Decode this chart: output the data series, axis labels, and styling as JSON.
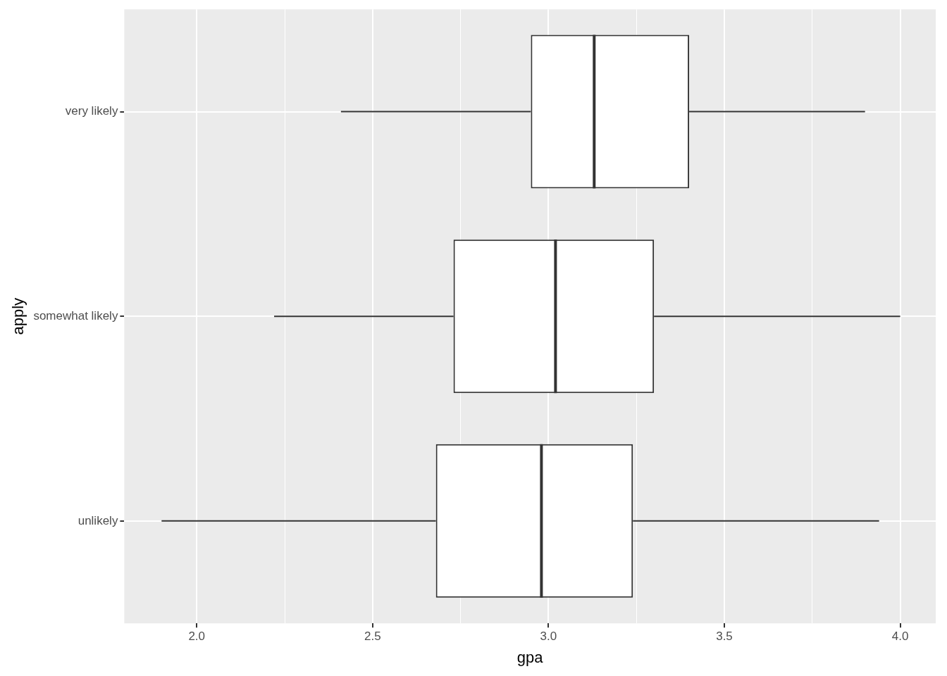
{
  "chart_data": {
    "type": "box",
    "orientation": "horizontal",
    "xlabel": "gpa",
    "ylabel": "apply",
    "categories": [
      "very likely",
      "somewhat likely",
      "unlikely"
    ],
    "boxes": [
      {
        "low": 2.41,
        "q1": 2.95,
        "median": 3.13,
        "q3": 3.4,
        "high": 3.9
      },
      {
        "low": 2.22,
        "q1": 2.73,
        "median": 3.02,
        "q3": 3.3,
        "high": 4.0
      },
      {
        "low": 1.9,
        "q1": 2.68,
        "median": 2.98,
        "q3": 3.24,
        "high": 3.94
      }
    ],
    "color": "#333333",
    "xlim": [
      1.794,
      4.101
    ],
    "xticks": [
      {
        "value": 2,
        "label": "2.0"
      },
      {
        "value": 2.25,
        "label": null
      },
      {
        "value": 2.5,
        "label": "2.5"
      },
      {
        "value": 2.75,
        "label": null
      },
      {
        "value": 3,
        "label": "3.0"
      },
      {
        "value": 3.25,
        "label": null
      },
      {
        "value": 3.5,
        "label": "3.5"
      },
      {
        "value": 3.75,
        "label": null
      },
      {
        "value": 4,
        "label": "4.0"
      }
    ],
    "grid": true,
    "legend": false
  }
}
